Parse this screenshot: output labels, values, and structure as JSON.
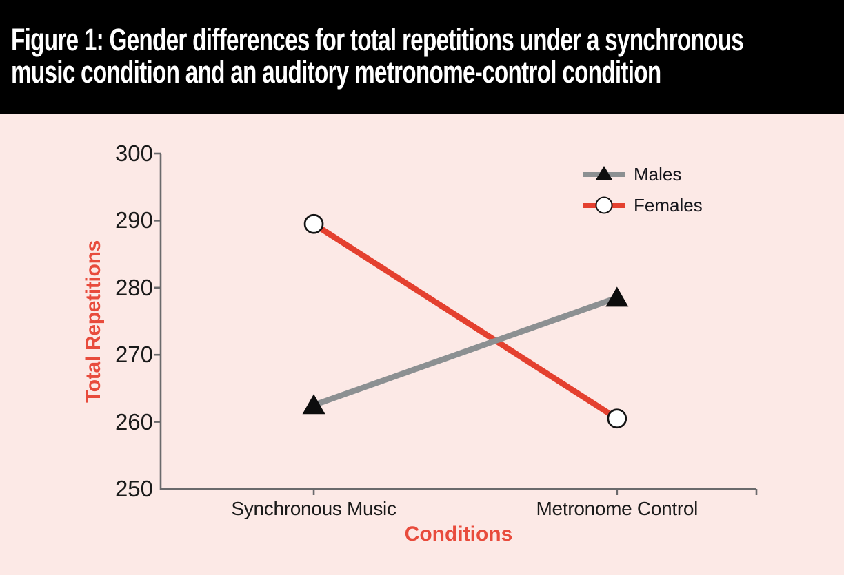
{
  "header": {
    "title_lines": [
      "Figure 1: Gender differences for total repetitions under a synchronous",
      "music condition and an auditory metronome-control condition"
    ]
  },
  "chart_data": {
    "type": "line",
    "title": "Figure 1: Gender differences for total repetitions under a synchronous music condition and an auditory metronome-control condition",
    "categories": [
      "Synchronous Music",
      "Metronome Control"
    ],
    "series": [
      {
        "name": "Males",
        "values": [
          262.5,
          278.5
        ],
        "color": "#8c9092",
        "marker": "triangle",
        "marker_color": "#0d0d0d"
      },
      {
        "name": "Females",
        "values": [
          289.5,
          260.5
        ],
        "color": "#e4402f",
        "marker": "circle",
        "marker_fill": "#ffffff",
        "marker_stroke": "#141414"
      }
    ],
    "xlabel": "Conditions",
    "ylabel": "Total Repetitions",
    "ylim": [
      250,
      300
    ],
    "yticks": [
      250,
      260,
      270,
      280,
      290,
      300
    ],
    "legend_position": "top-right",
    "grid": false
  },
  "colors": {
    "background": "#fce9e6",
    "header_bg": "#000000",
    "header_text": "#ffffff",
    "axis": "#6a6a6c",
    "tick_text": "#1a1a1a",
    "label_red": "#e84b3c",
    "legend_text": "#16161c"
  }
}
